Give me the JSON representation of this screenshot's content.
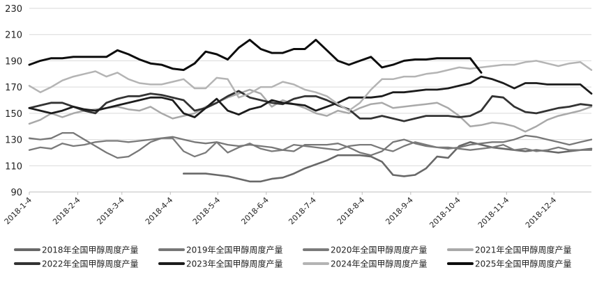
{
  "chart_data": {
    "type": "line",
    "title": "",
    "xlabel": "",
    "ylabel": "",
    "ylim": [
      90,
      230
    ],
    "yticks": [
      90,
      110,
      130,
      150,
      170,
      190,
      210,
      230
    ],
    "week_count": 52,
    "xtick_labels": [
      {
        "label": "2018-1-4",
        "week": 1
      },
      {
        "label": "2018-2-4",
        "week": 5.4
      },
      {
        "label": "2018-3-4",
        "week": 9.4
      },
      {
        "label": "2018-4-4",
        "week": 13.8
      },
      {
        "label": "2018-5-4",
        "week": 18.1
      },
      {
        "label": "2018-6-4",
        "week": 22.5
      },
      {
        "label": "2018-7-4",
        "week": 26.8
      },
      {
        "label": "2018-8-4",
        "week": 31.2
      },
      {
        "label": "2018-9-4",
        "week": 35.6
      },
      {
        "label": "2018-10-4",
        "week": 39.9
      },
      {
        "label": "2018-11-4",
        "week": 44.3
      },
      {
        "label": "2018-12-4",
        "week": 48.6
      }
    ],
    "grid": "horizontal",
    "legend_position": "bottom",
    "series": [
      {
        "name": "2018年全国甲醇周度产量",
        "color": "#686868",
        "width": 2.6,
        "start_week": 15,
        "values": [
          104,
          104,
          104,
          103,
          102,
          100,
          98,
          98,
          100,
          101,
          104,
          108,
          111,
          114,
          118,
          118,
          118,
          117,
          113,
          103,
          102,
          103,
          108,
          117,
          116,
          125,
          128,
          126,
          124,
          123,
          122,
          121,
          122,
          121,
          120,
          121,
          122,
          123
        ]
      },
      {
        "name": "2019年全国甲醇周度产量",
        "color": "#777777",
        "width": 2.3,
        "start_week": 1,
        "values": [
          131,
          130,
          131,
          135,
          135,
          130,
          125,
          120,
          116,
          117,
          122,
          128,
          131,
          132,
          130,
          128,
          127,
          128,
          126,
          125,
          126,
          125,
          124,
          122,
          121,
          126,
          126,
          126,
          127,
          124,
          120,
          118,
          121,
          128,
          130,
          127,
          125,
          124,
          123,
          124,
          126,
          127,
          128,
          128,
          130,
          133,
          132,
          130,
          128,
          126,
          128,
          130
        ]
      },
      {
        "name": "2020年全国甲醇周度产量",
        "color": "#7a7a7a",
        "width": 2.3,
        "start_week": 1,
        "values": [
          122,
          124,
          123,
          127,
          125,
          126,
          128,
          129,
          129,
          128,
          129,
          130,
          131,
          131,
          121,
          117,
          120,
          128,
          120,
          124,
          127,
          123,
          121,
          122,
          126,
          125,
          124,
          123,
          122,
          125,
          126,
          126,
          123,
          121,
          125,
          128,
          126,
          124,
          124,
          123,
          122,
          123,
          124,
          126,
          122,
          123,
          121,
          122,
          124,
          122,
          122,
          122
        ]
      },
      {
        "name": "2021年全国甲醇周度产量",
        "color": "#a9a9a9",
        "width": 2.5,
        "start_week": 1,
        "values": [
          142,
          145,
          150,
          147,
          150,
          152,
          153,
          154,
          155,
          153,
          152,
          155,
          150,
          146,
          148,
          150,
          155,
          158,
          162,
          165,
          168,
          165,
          155,
          160,
          157,
          154,
          150,
          148,
          152,
          150,
          154,
          157,
          158,
          154,
          155,
          156,
          157,
          158,
          154,
          148,
          140,
          141,
          143,
          142,
          140,
          136,
          140,
          145,
          148,
          150,
          152,
          155
        ]
      },
      {
        "name": "2022年全国甲醇周度产量",
        "color": "#333333",
        "width": 2.8,
        "start_week": 1,
        "values": [
          154,
          156,
          158,
          158,
          155,
          152,
          150,
          158,
          161,
          163,
          163,
          165,
          164,
          162,
          160,
          152,
          154,
          158,
          163,
          167,
          162,
          160,
          158,
          157,
          161,
          163,
          163,
          160,
          156,
          153,
          146,
          146,
          148,
          146,
          144,
          146,
          148,
          148,
          148,
          147,
          148,
          152,
          163,
          162,
          155,
          151,
          150,
          152,
          154,
          155,
          157,
          156
        ]
      },
      {
        "name": "2023年全国甲醇周度产量",
        "color": "#1c1c1c",
        "width": 2.8,
        "start_week": 1,
        "values": [
          154,
          152,
          150,
          152,
          155,
          153,
          152,
          154,
          156,
          158,
          160,
          162,
          162,
          160,
          150,
          147,
          154,
          161,
          152,
          149,
          153,
          155,
          160,
          158,
          157,
          156,
          152,
          155,
          158,
          162,
          162,
          162,
          163,
          166,
          166,
          167,
          168,
          168,
          169,
          171,
          173,
          178,
          176,
          173,
          169,
          173,
          173,
          172,
          172,
          172,
          172,
          165
        ]
      },
      {
        "name": "2024年全国甲醇周度产量",
        "color": "#b4b4b4",
        "width": 2.5,
        "start_week": 1,
        "values": [
          171,
          166,
          170,
          175,
          178,
          180,
          182,
          178,
          181,
          176,
          173,
          172,
          172,
          174,
          176,
          169,
          169,
          177,
          176,
          162,
          165,
          170,
          170,
          174,
          172,
          168,
          166,
          163,
          157,
          152,
          158,
          168,
          176,
          176,
          178,
          178,
          180,
          181,
          183,
          185,
          184,
          185,
          186,
          187,
          187,
          189,
          190,
          188,
          186,
          188,
          189,
          183
        ]
      },
      {
        "name": "2025年全国甲醇周度产量",
        "color": "#0d0d0d",
        "width": 3,
        "start_week": 1,
        "values": [
          187,
          190,
          192,
          192,
          193,
          193,
          193,
          193,
          198,
          195,
          191,
          188,
          187,
          184,
          183,
          188,
          197,
          195,
          191,
          200,
          206,
          199,
          196,
          196,
          199,
          199,
          206,
          198,
          190,
          187,
          190,
          193,
          185,
          187,
          190,
          191,
          191,
          192,
          192,
          192,
          192,
          181
        ]
      }
    ]
  }
}
